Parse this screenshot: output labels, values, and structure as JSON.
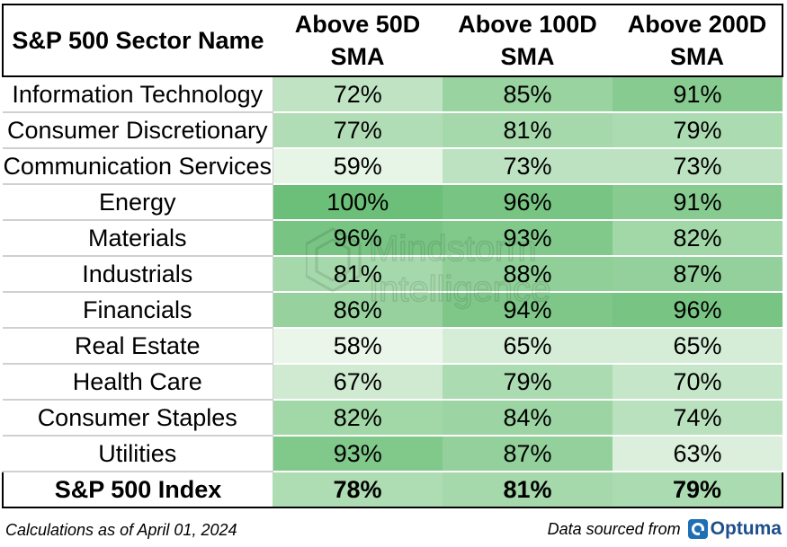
{
  "chart_data": {
    "type": "table",
    "columns": [
      "S&P 500 Sector Name",
      "Above 50D SMA",
      "Above 100D SMA",
      "Above 200D SMA"
    ],
    "header_lines": [
      [
        "S&P 500 Sector Name"
      ],
      [
        "Above 50D",
        "SMA"
      ],
      [
        "Above 100D",
        "SMA"
      ],
      [
        "Above 200D",
        "SMA"
      ]
    ],
    "rows": [
      {
        "name": "Information Technology",
        "values": [
          72,
          85,
          91
        ]
      },
      {
        "name": "Consumer Discretionary",
        "values": [
          77,
          81,
          79
        ]
      },
      {
        "name": "Communication Services",
        "values": [
          59,
          73,
          73
        ]
      },
      {
        "name": "Energy",
        "values": [
          100,
          96,
          91
        ]
      },
      {
        "name": "Materials",
        "values": [
          96,
          93,
          82
        ]
      },
      {
        "name": "Industrials",
        "values": [
          81,
          88,
          87
        ]
      },
      {
        "name": "Financials",
        "values": [
          86,
          94,
          96
        ]
      },
      {
        "name": "Real Estate",
        "values": [
          58,
          65,
          65
        ]
      },
      {
        "name": "Health Care",
        "values": [
          67,
          79,
          70
        ]
      },
      {
        "name": "Consumer Staples",
        "values": [
          82,
          84,
          74
        ]
      },
      {
        "name": "Utilities",
        "values": [
          93,
          87,
          63
        ]
      }
    ],
    "total": {
      "name": "S&P 500 Index",
      "values": [
        78,
        81,
        79
      ]
    },
    "value_suffix": "%",
    "color_scale": {
      "low": "#eaf6e9",
      "high": "#6cbf78",
      "min": 58,
      "max": 100
    }
  },
  "footer": {
    "note": "Calculations as of April 01, 2024",
    "source_label": "Data sourced from",
    "source_brand": "Optuma"
  },
  "watermark": {
    "line1": "Mindstorm",
    "line2": "Intelligence"
  },
  "colors": {
    "logo_blue": "#1f6fb5",
    "brand_text": "#1f4e8c"
  }
}
